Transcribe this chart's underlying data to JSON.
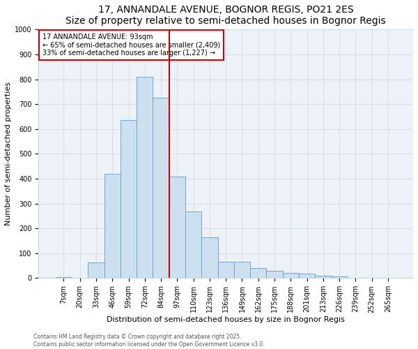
{
  "title1": "17, ANNANDALE AVENUE, BOGNOR REGIS, PO21 2ES",
  "title2": "Size of property relative to semi-detached houses in Bognor Regis",
  "xlabel": "Distribution of semi-detached houses by size in Bognor Regis",
  "ylabel": "Number of semi-detached properties",
  "categories": [
    "7sqm",
    "20sqm",
    "33sqm",
    "46sqm",
    "59sqm",
    "72sqm",
    "84sqm",
    "97sqm",
    "110sqm",
    "123sqm",
    "136sqm",
    "149sqm",
    "162sqm",
    "175sqm",
    "188sqm",
    "201sqm",
    "213sqm",
    "226sqm",
    "239sqm",
    "252sqm",
    "265sqm"
  ],
  "values": [
    3,
    0,
    62,
    420,
    635,
    810,
    725,
    407,
    267,
    163,
    65,
    65,
    40,
    28,
    20,
    17,
    8,
    5,
    2,
    1,
    0
  ],
  "bar_color": "#cce0f0",
  "bar_edge_color": "#6699cc",
  "vline_color": "#cc0000",
  "property_size": "93sqm",
  "property_label": "17 ANNANDALE AVENUE: 93sqm",
  "smaller_pct": "65%",
  "smaller_n": "2,409",
  "larger_pct": "33%",
  "larger_n": "1,227",
  "annotation_box_color": "#cc0000",
  "ylim": [
    0,
    1000
  ],
  "yticks": [
    0,
    100,
    200,
    300,
    400,
    500,
    600,
    700,
    800,
    900,
    1000
  ],
  "background_color": "#edf2f8",
  "footer1": "Contains HM Land Registry data © Crown copyright and database right 2025.",
  "footer2": "Contains public sector information licensed under the Open Government Licence v3.0.",
  "title_fontsize": 10,
  "subtitle_fontsize": 9,
  "axis_label_fontsize": 8,
  "tick_fontsize": 7,
  "ann_fontsize": 7,
  "footer_fontsize": 5.5
}
